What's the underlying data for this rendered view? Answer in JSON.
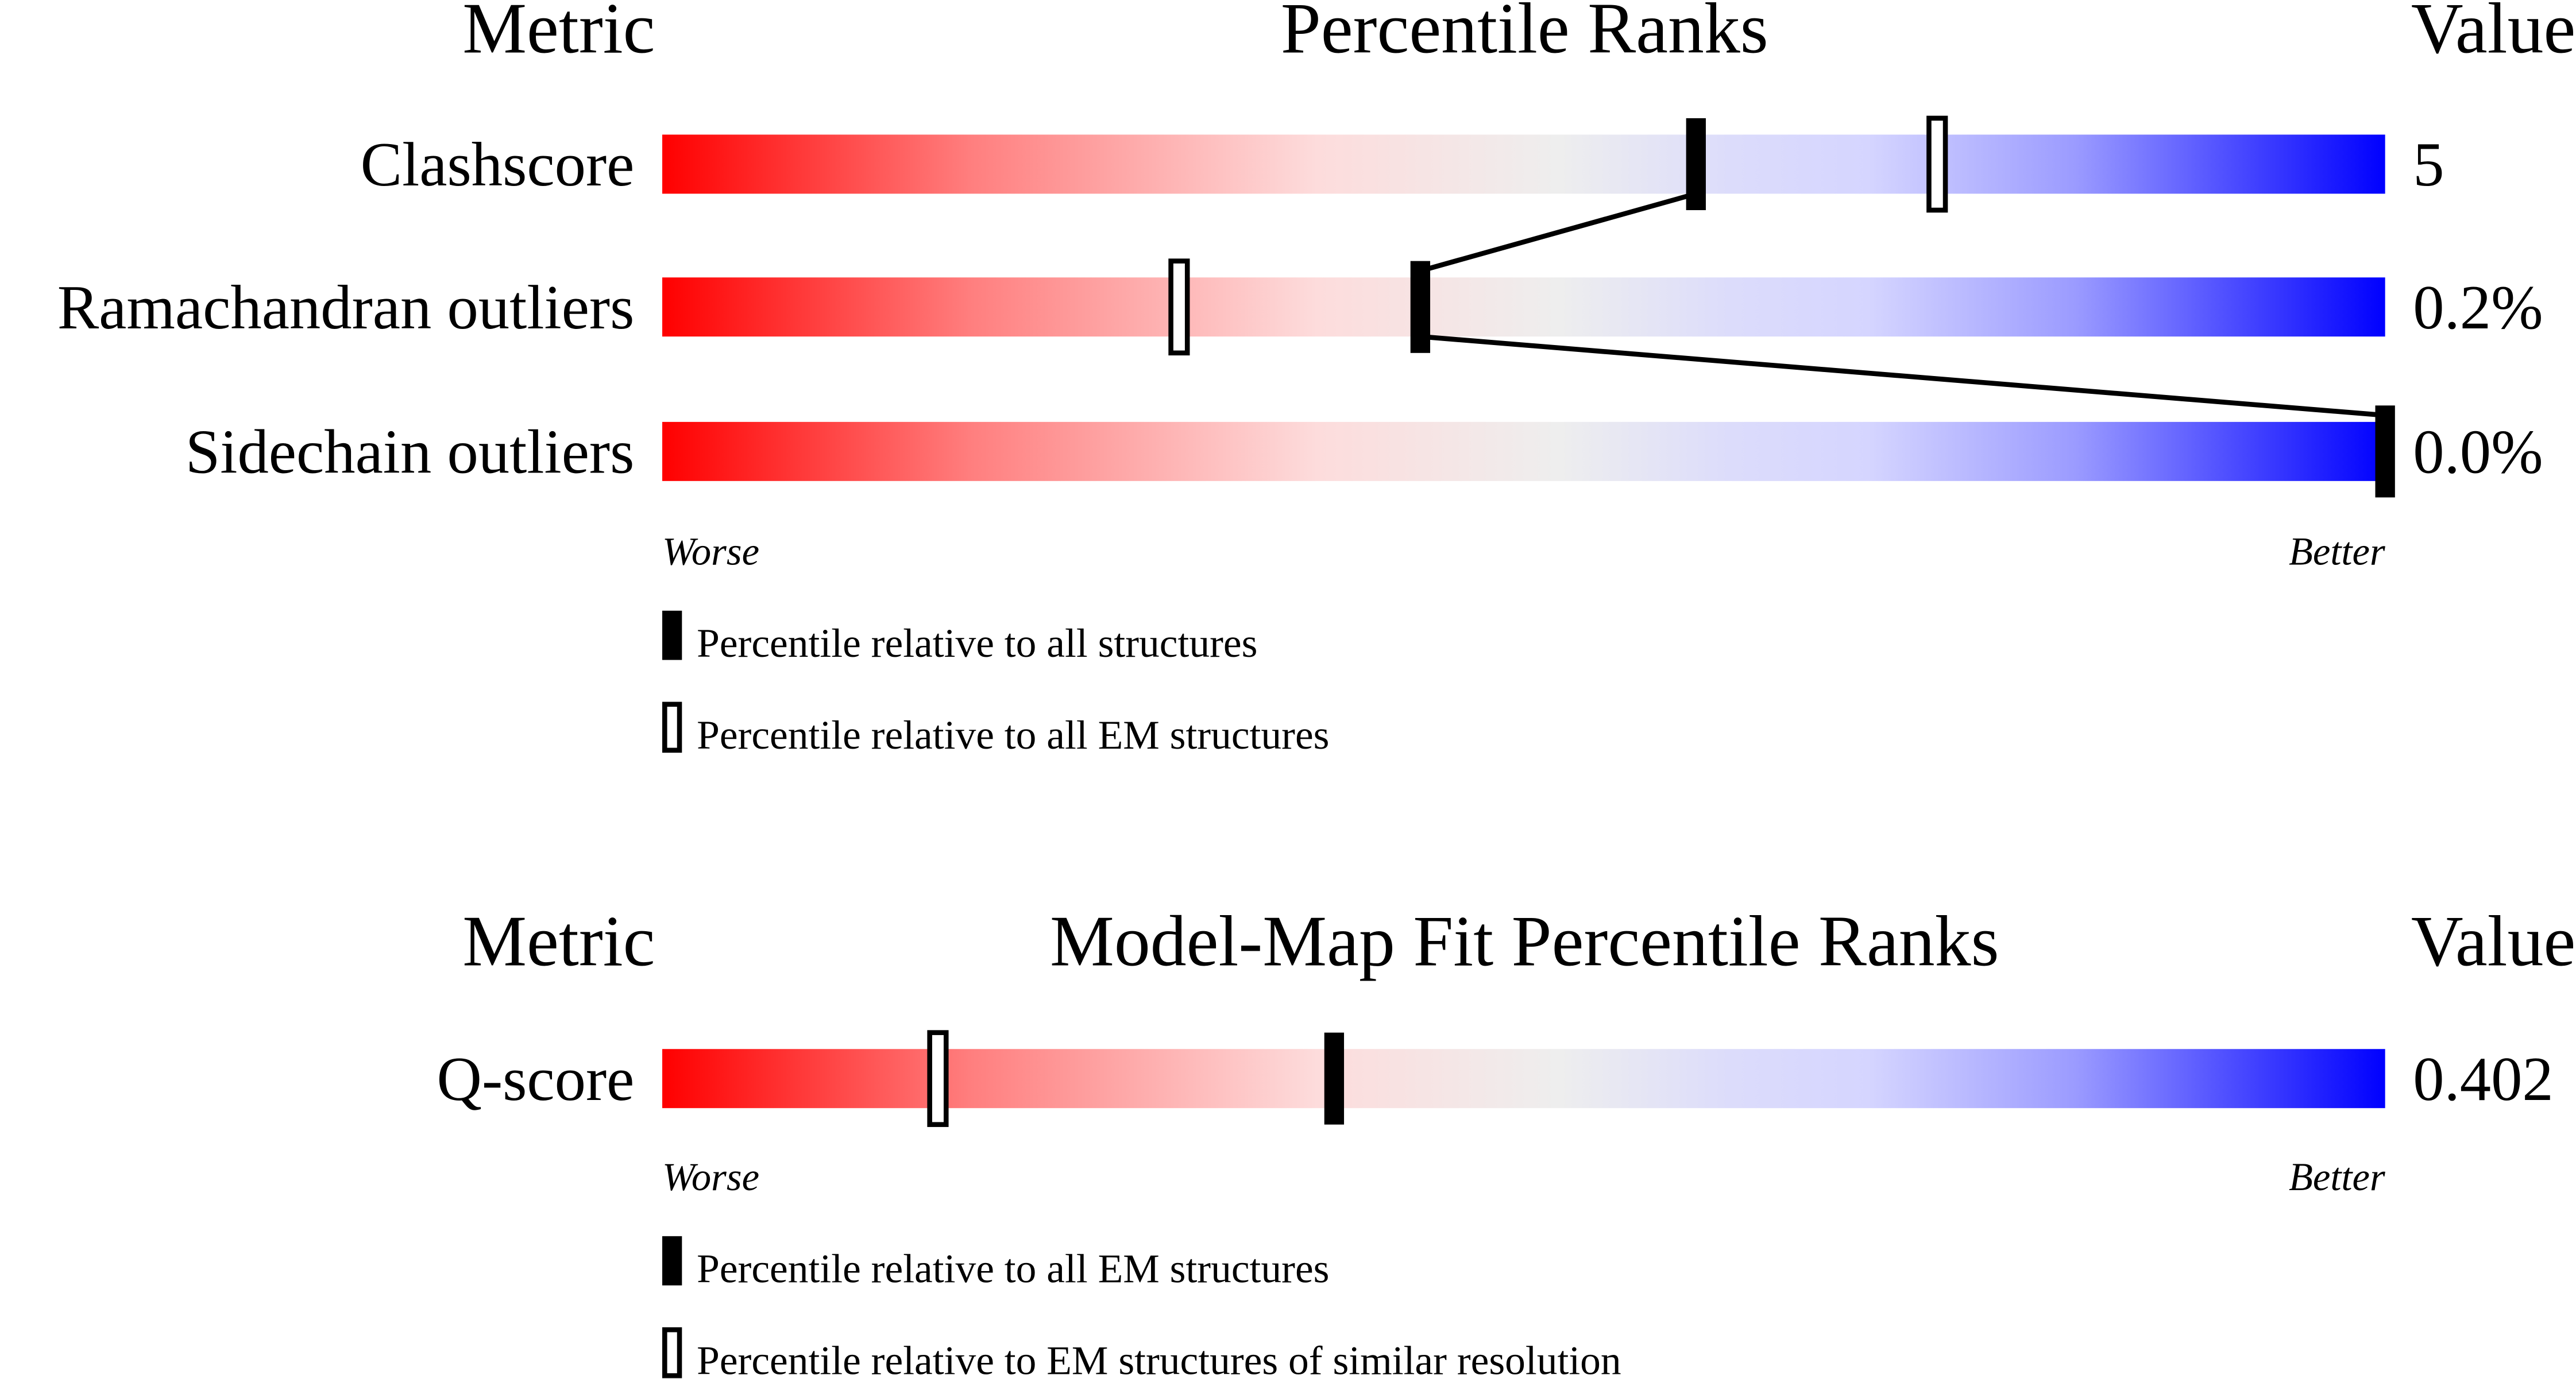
{
  "chart_data": [
    {
      "type": "bar",
      "header": {
        "metric": "Metric",
        "title": "Percentile Ranks",
        "value": "Value"
      },
      "metrics": [
        {
          "name": "Clashscore",
          "value": "5",
          "percentile_all": 60,
          "percentile_em": 74
        },
        {
          "name": "Ramachandran outliers",
          "value": "0.2%",
          "percentile_all": 44,
          "percentile_em": 30
        },
        {
          "name": "Sidechain outliers",
          "value": "0.0%",
          "percentile_all": 100,
          "percentile_em": null
        }
      ],
      "xlim": [
        0,
        100
      ],
      "worse_label": "Worse",
      "better_label": "Better",
      "legend": {
        "filled": "Percentile relative to all structures",
        "open": "Percentile relative to all EM structures"
      }
    },
    {
      "type": "bar",
      "header": {
        "metric": "Metric",
        "title": "Model-Map Fit Percentile Ranks",
        "value": "Value"
      },
      "metrics": [
        {
          "name": "Q-score",
          "value": "0.402",
          "percentile_all": 39,
          "percentile_em": 16
        }
      ],
      "xlim": [
        0,
        100
      ],
      "worse_label": "Worse",
      "better_label": "Better",
      "legend": {
        "filled": "Percentile relative to all EM structures",
        "open": "Percentile relative to EM structures of similar resolution"
      }
    }
  ],
  "colors": {
    "worse": "#ff0000",
    "middle": "#eeeeee",
    "better": "#0000ff",
    "marker": "#000000"
  }
}
